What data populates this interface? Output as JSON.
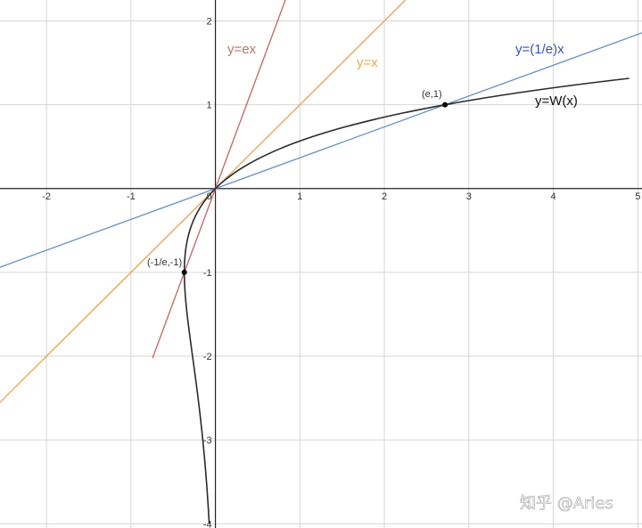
{
  "chart_data": {
    "type": "line",
    "title": "",
    "xlabel": "",
    "ylabel": "",
    "xlim": [
      -2.55,
      5.05
    ],
    "ylim": [
      -4.05,
      2.25
    ],
    "grid": true,
    "x_ticks": [
      -2,
      -1,
      1,
      2,
      3,
      4,
      5
    ],
    "y_ticks": [
      2,
      1,
      -1,
      -2,
      -3,
      -4
    ],
    "origin_label": "0",
    "series": [
      {
        "name": "y=ex",
        "expression": "y = e·x",
        "color": "#c0706a",
        "x": [
          -0.744,
          0.828
        ],
        "y": [
          -2.022,
          2.25
        ]
      },
      {
        "name": "y=x",
        "expression": "y = x",
        "color": "#e6a85a",
        "x": [
          -2.55,
          2.25
        ],
        "y": [
          -2.55,
          2.25
        ]
      },
      {
        "name": "y=(1/e)x",
        "expression": "y = x/e",
        "color": "#6f96c4",
        "x": [
          -2.55,
          5.05
        ],
        "y": [
          -0.938,
          1.858
        ]
      },
      {
        "name": "y=W(x)",
        "expression": "Lambert W",
        "color": "#2a2a2a",
        "x": [
          -0.0733,
          -0.2052,
          -0.2921,
          -0.3347,
          -0.3491,
          -0.3679,
          -0.3659,
          -0.3347,
          -0.224,
          -0.1494,
          -0.0733,
          0,
          0.0551,
          0.1644,
          0.3894,
          0.6872,
          1.0,
          1.4918,
          2.0,
          2.7183,
          3.5,
          4.4817,
          5.05
        ],
        "y": [
          -4.0,
          -3.5,
          -3.0,
          -2.5,
          -2.2,
          -1.0,
          -1.2,
          -0.5,
          -0.3,
          -0.2,
          -0.08,
          0,
          0.05,
          0.15,
          0.3,
          0.45,
          0.567,
          0.7,
          0.853,
          1.0,
          1.1,
          1.25,
          1.315
        ]
      }
    ],
    "points": [
      {
        "label": "(e,1)",
        "x": 2.718,
        "y": 1
      },
      {
        "label": "(-1/e,-1)",
        "x": -0.3679,
        "y": -1
      }
    ]
  },
  "watermark": "知乎 @Aries"
}
